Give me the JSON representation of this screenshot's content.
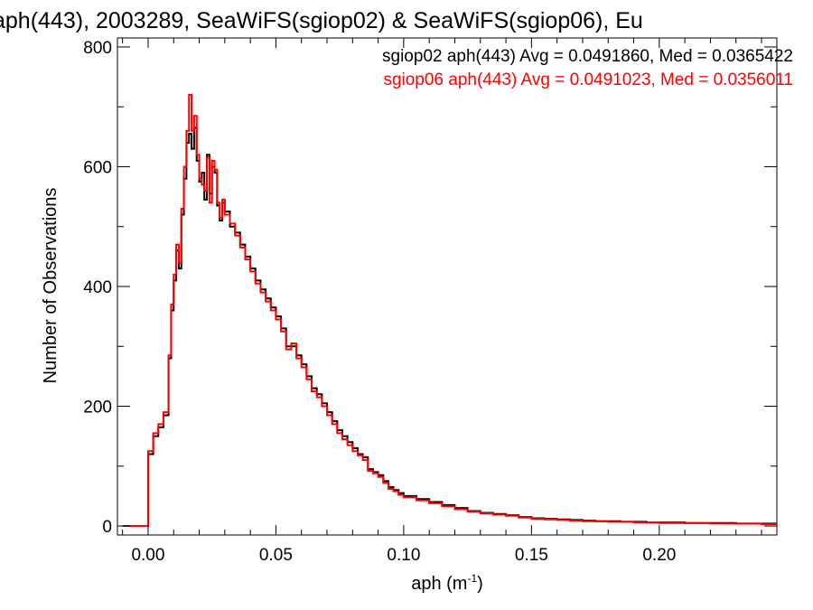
{
  "chart_data": {
    "type": "line",
    "title": "aph(443), 2003289, SeaWiFS(sgiop02) & SeaWiFS(sgiop06), Eu",
    "xlabel_base": "aph (m",
    "xlabel_sup": "-1",
    "xlabel_close": ")",
    "ylabel": "Number of Observations",
    "xlim": [
      -0.012,
      0.246
    ],
    "ylim": [
      -15,
      815
    ],
    "xticks": [
      0.0,
      0.05,
      0.1,
      0.15,
      0.2
    ],
    "xtick_labels": [
      "0.00",
      "0.05",
      "0.10",
      "0.15",
      "0.20"
    ],
    "yticks": [
      0,
      200,
      400,
      600,
      800
    ],
    "ytick_labels": [
      "0",
      "200",
      "400",
      "600",
      "800"
    ],
    "grid": false,
    "legend_position": "top-right",
    "series": [
      {
        "name": "sgiop02 aph(443) Avg = 0.0491860, Med = 0.0365422",
        "color": "#000000",
        "points": [
          [
            -0.01,
            0
          ],
          [
            -0.002,
            0
          ],
          [
            0.0,
            120
          ],
          [
            0.002,
            150
          ],
          [
            0.004,
            165
          ],
          [
            0.006,
            185
          ],
          [
            0.008,
            280
          ],
          [
            0.009,
            360
          ],
          [
            0.01,
            410
          ],
          [
            0.011,
            460
          ],
          [
            0.012,
            430
          ],
          [
            0.013,
            520
          ],
          [
            0.014,
            580
          ],
          [
            0.015,
            640
          ],
          [
            0.016,
            655
          ],
          [
            0.017,
            630
          ],
          [
            0.018,
            665
          ],
          [
            0.019,
            610
          ],
          [
            0.02,
            575
          ],
          [
            0.021,
            590
          ],
          [
            0.022,
            545
          ],
          [
            0.023,
            620
          ],
          [
            0.024,
            555
          ],
          [
            0.025,
            600
          ],
          [
            0.026,
            590
          ],
          [
            0.027,
            535
          ],
          [
            0.028,
            510
          ],
          [
            0.029,
            540
          ],
          [
            0.03,
            525
          ],
          [
            0.032,
            500
          ],
          [
            0.034,
            490
          ],
          [
            0.036,
            470
          ],
          [
            0.038,
            450
          ],
          [
            0.04,
            430
          ],
          [
            0.042,
            410
          ],
          [
            0.044,
            395
          ],
          [
            0.046,
            380
          ],
          [
            0.048,
            365
          ],
          [
            0.05,
            350
          ],
          [
            0.052,
            330
          ],
          [
            0.054,
            300
          ],
          [
            0.056,
            300
          ],
          [
            0.058,
            285
          ],
          [
            0.06,
            270
          ],
          [
            0.062,
            250
          ],
          [
            0.064,
            230
          ],
          [
            0.066,
            220
          ],
          [
            0.068,
            205
          ],
          [
            0.07,
            190
          ],
          [
            0.072,
            175
          ],
          [
            0.074,
            160
          ],
          [
            0.076,
            150
          ],
          [
            0.078,
            140
          ],
          [
            0.08,
            130
          ],
          [
            0.082,
            120
          ],
          [
            0.084,
            115
          ],
          [
            0.086,
            95
          ],
          [
            0.088,
            90
          ],
          [
            0.09,
            85
          ],
          [
            0.092,
            75
          ],
          [
            0.094,
            65
          ],
          [
            0.096,
            60
          ],
          [
            0.098,
            55
          ],
          [
            0.1,
            50
          ],
          [
            0.105,
            45
          ],
          [
            0.11,
            40
          ],
          [
            0.115,
            35
          ],
          [
            0.12,
            30
          ],
          [
            0.125,
            25
          ],
          [
            0.13,
            22
          ],
          [
            0.135,
            20
          ],
          [
            0.14,
            18
          ],
          [
            0.145,
            15
          ],
          [
            0.15,
            13
          ],
          [
            0.155,
            12
          ],
          [
            0.16,
            11
          ],
          [
            0.165,
            10
          ],
          [
            0.17,
            9
          ],
          [
            0.175,
            8
          ],
          [
            0.18,
            8
          ],
          [
            0.185,
            7
          ],
          [
            0.19,
            7
          ],
          [
            0.195,
            6
          ],
          [
            0.2,
            6
          ],
          [
            0.21,
            5
          ],
          [
            0.22,
            5
          ],
          [
            0.23,
            4
          ],
          [
            0.24,
            4
          ],
          [
            0.246,
            4
          ]
        ]
      },
      {
        "name": "sgiop06 aph(443) Avg = 0.0491023, Med = 0.0356011",
        "color": "#ff0000",
        "points": [
          [
            -0.01,
            0
          ],
          [
            -0.002,
            0
          ],
          [
            0.0,
            125
          ],
          [
            0.002,
            155
          ],
          [
            0.004,
            170
          ],
          [
            0.006,
            190
          ],
          [
            0.008,
            285
          ],
          [
            0.009,
            370
          ],
          [
            0.01,
            420
          ],
          [
            0.011,
            470
          ],
          [
            0.012,
            440
          ],
          [
            0.013,
            530
          ],
          [
            0.014,
            600
          ],
          [
            0.015,
            660
          ],
          [
            0.016,
            720
          ],
          [
            0.017,
            660
          ],
          [
            0.018,
            685
          ],
          [
            0.019,
            620
          ],
          [
            0.02,
            580
          ],
          [
            0.021,
            570
          ],
          [
            0.022,
            560
          ],
          [
            0.023,
            615
          ],
          [
            0.024,
            540
          ],
          [
            0.025,
            610
          ],
          [
            0.026,
            595
          ],
          [
            0.027,
            540
          ],
          [
            0.028,
            515
          ],
          [
            0.029,
            545
          ],
          [
            0.03,
            520
          ],
          [
            0.032,
            505
          ],
          [
            0.034,
            485
          ],
          [
            0.036,
            465
          ],
          [
            0.038,
            445
          ],
          [
            0.04,
            425
          ],
          [
            0.042,
            405
          ],
          [
            0.044,
            390
          ],
          [
            0.046,
            375
          ],
          [
            0.048,
            360
          ],
          [
            0.05,
            345
          ],
          [
            0.052,
            325
          ],
          [
            0.054,
            295
          ],
          [
            0.056,
            305
          ],
          [
            0.058,
            280
          ],
          [
            0.06,
            265
          ],
          [
            0.062,
            245
          ],
          [
            0.064,
            225
          ],
          [
            0.066,
            215
          ],
          [
            0.068,
            200
          ],
          [
            0.07,
            185
          ],
          [
            0.072,
            170
          ],
          [
            0.074,
            155
          ],
          [
            0.076,
            145
          ],
          [
            0.078,
            135
          ],
          [
            0.08,
            125
          ],
          [
            0.082,
            118
          ],
          [
            0.084,
            110
          ],
          [
            0.086,
            92
          ],
          [
            0.088,
            88
          ],
          [
            0.09,
            82
          ],
          [
            0.092,
            72
          ],
          [
            0.094,
            62
          ],
          [
            0.096,
            58
          ],
          [
            0.098,
            52
          ],
          [
            0.1,
            48
          ],
          [
            0.105,
            43
          ],
          [
            0.11,
            38
          ],
          [
            0.115,
            33
          ],
          [
            0.12,
            28
          ],
          [
            0.125,
            24
          ],
          [
            0.13,
            21
          ],
          [
            0.135,
            19
          ],
          [
            0.14,
            17
          ],
          [
            0.145,
            14
          ],
          [
            0.15,
            12
          ],
          [
            0.155,
            11
          ],
          [
            0.16,
            10
          ],
          [
            0.165,
            9
          ],
          [
            0.17,
            8
          ],
          [
            0.175,
            8
          ],
          [
            0.18,
            7
          ],
          [
            0.185,
            7
          ],
          [
            0.19,
            6
          ],
          [
            0.195,
            6
          ],
          [
            0.2,
            5
          ],
          [
            0.21,
            5
          ],
          [
            0.22,
            4
          ],
          [
            0.23,
            4
          ],
          [
            0.24,
            3
          ],
          [
            0.246,
            3
          ]
        ]
      }
    ]
  }
}
